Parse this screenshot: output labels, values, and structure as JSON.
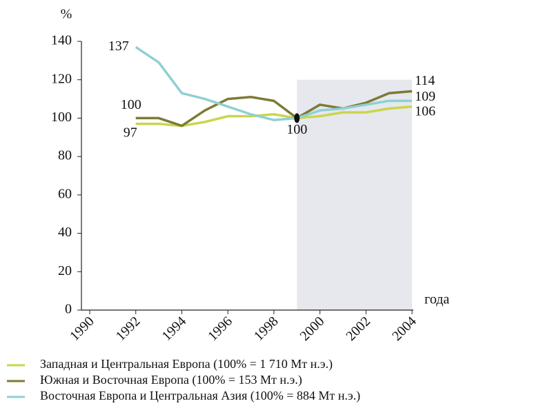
{
  "chart_data": {
    "type": "line",
    "y_label": "%",
    "x_label": "года",
    "x": [
      1992,
      1993,
      1994,
      1995,
      1996,
      1997,
      1998,
      1999,
      2000,
      2001,
      2002,
      2003,
      2004
    ],
    "series": [
      {
        "name": "Западная и Центральная Европа (100% = 1 710 Мт н.э.)",
        "color": "#c9d64a",
        "values": [
          97,
          97,
          96,
          98,
          101,
          101,
          102,
          100,
          101,
          103,
          103,
          105,
          106
        ]
      },
      {
        "name": "Южная и Восточная Европа (100% = 153 Мт н.э.)",
        "color": "#7d7a34",
        "values": [
          100,
          100,
          96,
          104,
          110,
          111,
          109,
          100,
          107,
          105,
          108,
          113,
          114
        ]
      },
      {
        "name": "Восточная Европа и Центральная Азия (100% = 884 Мт н.э.)",
        "color": "#8fd0d2",
        "values": [
          137,
          129,
          113,
          110,
          106,
          102,
          99,
          100,
          104,
          105,
          107,
          109,
          109
        ]
      }
    ],
    "xlim": [
      1990,
      2004
    ],
    "xticks": [
      1990,
      1992,
      1994,
      1996,
      1998,
      2000,
      2002,
      2004
    ],
    "ylim": [
      0,
      140
    ],
    "yticks": [
      0,
      20,
      40,
      60,
      80,
      100,
      120,
      140
    ],
    "shaded_region": {
      "x": [
        1999,
        2004
      ],
      "y": [
        0,
        120
      ],
      "color": "#e6e8ee"
    }
  }
}
